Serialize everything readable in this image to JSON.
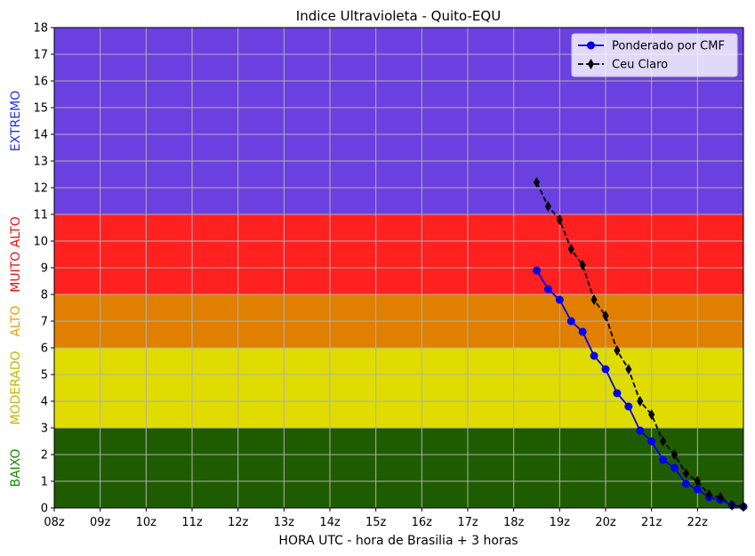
{
  "chart_data": {
    "type": "line",
    "title": "Indice Ultravioleta - Quito-EQU",
    "xlabel": "HORA UTC - hora de Brasilia + 3 horas",
    "ylabel": "",
    "xlim": [
      8,
      23
    ],
    "ylim": [
      0,
      18
    ],
    "x_ticks": [
      {
        "value": 8,
        "label": "08z"
      },
      {
        "value": 9,
        "label": "09z"
      },
      {
        "value": 10,
        "label": "10z"
      },
      {
        "value": 11,
        "label": "11z"
      },
      {
        "value": 12,
        "label": "12z"
      },
      {
        "value": 13,
        "label": "13z"
      },
      {
        "value": 14,
        "label": "14z"
      },
      {
        "value": 15,
        "label": "15z"
      },
      {
        "value": 16,
        "label": "16z"
      },
      {
        "value": 17,
        "label": "17z"
      },
      {
        "value": 18,
        "label": "18z"
      },
      {
        "value": 19,
        "label": "19z"
      },
      {
        "value": 20,
        "label": "20z"
      },
      {
        "value": 21,
        "label": "21z"
      },
      {
        "value": 22,
        "label": "22z"
      },
      {
        "value": 23,
        "label": ""
      }
    ],
    "y_ticks": [
      0,
      1,
      2,
      3,
      4,
      5,
      6,
      7,
      8,
      9,
      10,
      11,
      12,
      13,
      14,
      15,
      16,
      17,
      18
    ],
    "grid": true,
    "legend_position": "top-right",
    "bands": [
      {
        "label": "BAIXO",
        "from": 0,
        "to": 3,
        "color": "#1f5c00",
        "label_color": "#1a8a00"
      },
      {
        "label": "MODERADO",
        "from": 3,
        "to": 6,
        "color": "#e0dc00",
        "label_color": "#c8b400"
      },
      {
        "label": "ALTO",
        "from": 6,
        "to": 8,
        "color": "#e07f00",
        "label_color": "#f0a000"
      },
      {
        "label": "MUITO ALTO",
        "from": 8,
        "to": 11,
        "color": "#ff2020",
        "label_color": "#ee1111"
      },
      {
        "label": "EXTREMO",
        "from": 11,
        "to": 18,
        "color": "#6b40e0",
        "label_color": "#2233dd"
      }
    ],
    "series": [
      {
        "name": "Ponderado por CMF",
        "color": "#0000ee",
        "marker": "circle",
        "line_style": "solid",
        "x": [
          18.5,
          18.75,
          19.0,
          19.25,
          19.5,
          19.75,
          20.0,
          20.25,
          20.5,
          20.75,
          21.0,
          21.25,
          21.5,
          21.75,
          22.0,
          22.25,
          22.5,
          22.75,
          23.0
        ],
        "y": [
          8.9,
          8.2,
          7.8,
          7.0,
          6.6,
          5.7,
          5.2,
          4.3,
          3.8,
          2.9,
          2.5,
          1.8,
          1.5,
          0.9,
          0.7,
          0.4,
          0.3,
          0.1,
          0.05
        ]
      },
      {
        "name": "Ceu Claro",
        "color": "#000000",
        "marker": "diamond",
        "line_style": "dashed",
        "x": [
          18.5,
          18.75,
          19.0,
          19.25,
          19.5,
          19.75,
          20.0,
          20.25,
          20.5,
          20.75,
          21.0,
          21.25,
          21.5,
          21.75,
          22.0,
          22.25,
          22.5,
          22.75,
          23.0
        ],
        "y": [
          12.2,
          11.3,
          10.8,
          9.7,
          9.1,
          7.8,
          7.2,
          5.9,
          5.2,
          4.0,
          3.5,
          2.5,
          2.0,
          1.3,
          1.0,
          0.5,
          0.4,
          0.1,
          0.05
        ]
      }
    ]
  }
}
